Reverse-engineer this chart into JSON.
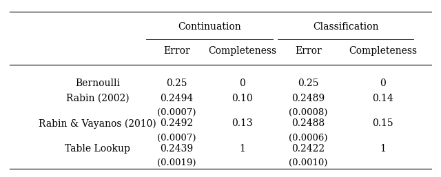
{
  "title": "",
  "col_groups": [
    {
      "label": "Continuation",
      "cols": [
        1,
        2
      ]
    },
    {
      "label": "Classification",
      "cols": [
        3,
        4
      ]
    }
  ],
  "col_headers": [
    "",
    "Error",
    "Completeness",
    "Error",
    "Completeness"
  ],
  "rows": [
    {
      "label": "Bernoulli",
      "values": [
        "0.25",
        "0",
        "0.25",
        "0"
      ],
      "sub_values": [
        "",
        "",
        "",
        ""
      ]
    },
    {
      "label": "Rabin (2002)",
      "values": [
        "0.2494",
        "0.10",
        "0.2489",
        "0.14"
      ],
      "sub_values": [
        "(0.0007)",
        "",
        "(0.0008)",
        ""
      ]
    },
    {
      "label": "Rabin & Vayanos (2010)",
      "values": [
        "0.2492",
        "0.13",
        "0.2488",
        "0.15"
      ],
      "sub_values": [
        "(0.0007)",
        "",
        "(0.0006)",
        ""
      ]
    },
    {
      "label": "Table Lookup",
      "values": [
        "0.2439",
        "1",
        "0.2422",
        "1"
      ],
      "sub_values": [
        "(0.0019)",
        "",
        "(0.0010)",
        ""
      ]
    }
  ],
  "font_size": 10,
  "font_family": "serif",
  "bg_color": "#ffffff",
  "text_color": "#000000"
}
